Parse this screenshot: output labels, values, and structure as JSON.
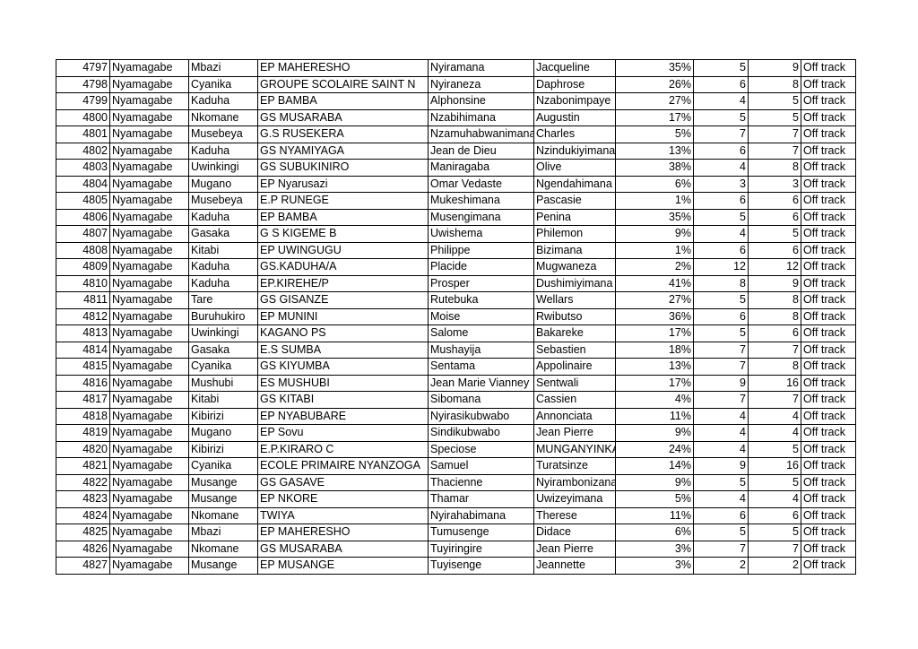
{
  "table": {
    "rows": [
      [
        "4797",
        "Nyamagabe",
        "Mbazi",
        "EP MAHERESHO",
        "Nyiramana",
        "Jacqueline",
        "35%",
        "5",
        "9",
        "Off track"
      ],
      [
        "4798",
        "Nyamagabe",
        "Cyanika",
        "GROUPE SCOLAIRE SAINT N",
        "Nyiraneza",
        "Daphrose",
        "26%",
        "6",
        "8",
        "Off track"
      ],
      [
        "4799",
        "Nyamagabe",
        "Kaduha",
        "EP BAMBA",
        "Alphonsine",
        "Nzabonimpaye",
        "27%",
        "4",
        "5",
        "Off track"
      ],
      [
        "4800",
        "Nyamagabe",
        "Nkomane",
        "GS MUSARABA",
        "Nzabihimana",
        "Augustin",
        "17%",
        "5",
        "5",
        "Off track"
      ],
      [
        "4801",
        "Nyamagabe",
        "Musebeya",
        "G.S RUSEKERA",
        "Nzamuhabwanimana",
        "Charles",
        "5%",
        "7",
        "7",
        "Off track"
      ],
      [
        "4802",
        "Nyamagabe",
        "Kaduha",
        "GS NYAMIYAGA",
        "Jean de Dieu",
        "Nzindukiyimana",
        "13%",
        "6",
        "7",
        "Off track"
      ],
      [
        "4803",
        "Nyamagabe",
        "Uwinkingi",
        "GS SUBUKINIRO",
        "Maniragaba",
        "Olive",
        "38%",
        "4",
        "8",
        "Off track"
      ],
      [
        "4804",
        "Nyamagabe",
        "Mugano",
        "EP Nyarusazi",
        "Omar Vedaste",
        "Ngendahimana",
        "6%",
        "3",
        "3",
        "Off track"
      ],
      [
        "4805",
        "Nyamagabe",
        "Musebeya",
        "E.P RUNEGE",
        "Mukeshimana",
        "Pascasie",
        "1%",
        "6",
        "6",
        "Off track"
      ],
      [
        "4806",
        "Nyamagabe",
        "Kaduha",
        "EP BAMBA",
        "Musengimana",
        "Penina",
        "35%",
        "5",
        "6",
        "Off track"
      ],
      [
        "4807",
        "Nyamagabe",
        "Gasaka",
        "G S KIGEME B",
        "Uwishema",
        "Philemon",
        "9%",
        "4",
        "5",
        "Off track"
      ],
      [
        "4808",
        "Nyamagabe",
        "Kitabi",
        "EP UWINGUGU",
        "Philippe",
        "Bizimana",
        "1%",
        "6",
        "6",
        "Off track"
      ],
      [
        "4809",
        "Nyamagabe",
        "Kaduha",
        "GS.KADUHA/A",
        "Placide",
        "Mugwaneza",
        "2%",
        "12",
        "12",
        "Off track"
      ],
      [
        "4810",
        "Nyamagabe",
        "Kaduha",
        "EP.KIREHE/P",
        "Prosper",
        "Dushimiyimana",
        "41%",
        "8",
        "9",
        "Off track"
      ],
      [
        "4811",
        "Nyamagabe",
        "Tare",
        "GS GISANZE",
        "Rutebuka",
        "Wellars",
        "27%",
        "5",
        "8",
        "Off track"
      ],
      [
        "4812",
        "Nyamagabe",
        "Buruhukiro",
        "EP MUNINI",
        "Moise",
        "Rwibutso",
        "36%",
        "6",
        "8",
        "Off track"
      ],
      [
        "4813",
        "Nyamagabe",
        "Uwinkingi",
        "KAGANO PS",
        "Salome",
        "Bakareke",
        "17%",
        "5",
        "6",
        "Off track"
      ],
      [
        "4814",
        "Nyamagabe",
        "Gasaka",
        "E.S SUMBA",
        "Mushayija",
        "Sebastien",
        "18%",
        "7",
        "7",
        "Off track"
      ],
      [
        "4815",
        "Nyamagabe",
        "Cyanika",
        "GS KIYUMBA",
        "Sentama",
        "Appolinaire",
        "13%",
        "7",
        "8",
        "Off track"
      ],
      [
        "4816",
        "Nyamagabe",
        "Mushubi",
        "ES MUSHUBI",
        "Jean Marie Vianney",
        "Sentwali",
        "17%",
        "9",
        "16",
        "Off track"
      ],
      [
        "4817",
        "Nyamagabe",
        "Kitabi",
        "GS KITABI",
        "Sibomana",
        "Cassien",
        "4%",
        "7",
        "7",
        "Off track"
      ],
      [
        "4818",
        "Nyamagabe",
        "Kibirizi",
        "EP NYABUBARE",
        "Nyirasikubwabo",
        "Annonciata",
        "11%",
        "4",
        "4",
        "Off track"
      ],
      [
        "4819",
        "Nyamagabe",
        "Mugano",
        "EP Sovu",
        "Sindikubwabo",
        "Jean Pierre",
        "9%",
        "4",
        "4",
        "Off track"
      ],
      [
        "4820",
        "Nyamagabe",
        "Kibirizi",
        "E.P.KIRARO C",
        "Speciose",
        "MUNGANYINKA",
        "24%",
        "4",
        "5",
        "Off track"
      ],
      [
        "4821",
        "Nyamagabe",
        "Cyanika",
        "ECOLE PRIMAIRE NYANZOGA",
        "Samuel",
        "Turatsinze",
        "14%",
        "9",
        "16",
        "Off track"
      ],
      [
        "4822",
        "Nyamagabe",
        "Musange",
        "GS GASAVE",
        "Thacienne",
        "Nyirambonizana",
        "9%",
        "5",
        "5",
        "Off track"
      ],
      [
        "4823",
        "Nyamagabe",
        "Musange",
        "EP NKORE",
        "Thamar",
        "Uwizeyimana",
        "5%",
        "4",
        "4",
        "Off track"
      ],
      [
        "4824",
        "Nyamagabe",
        "Nkomane",
        "TWIYA",
        "Nyirahabimana",
        "Therese",
        "11%",
        "6",
        "6",
        "Off track"
      ],
      [
        "4825",
        "Nyamagabe",
        "Mbazi",
        "EP MAHERESHO",
        "Tumusenge",
        "Didace",
        "6%",
        "5",
        "5",
        "Off track"
      ],
      [
        "4826",
        "Nyamagabe",
        "Nkomane",
        "GS MUSARABA",
        "Tuyiringire",
        "Jean Pierre",
        "3%",
        "7",
        "7",
        "Off track"
      ],
      [
        "4827",
        "Nyamagabe",
        "Musange",
        "EP MUSANGE",
        "Tuyisenge",
        "Jeannette",
        "3%",
        "2",
        "2",
        "Off track"
      ]
    ]
  }
}
